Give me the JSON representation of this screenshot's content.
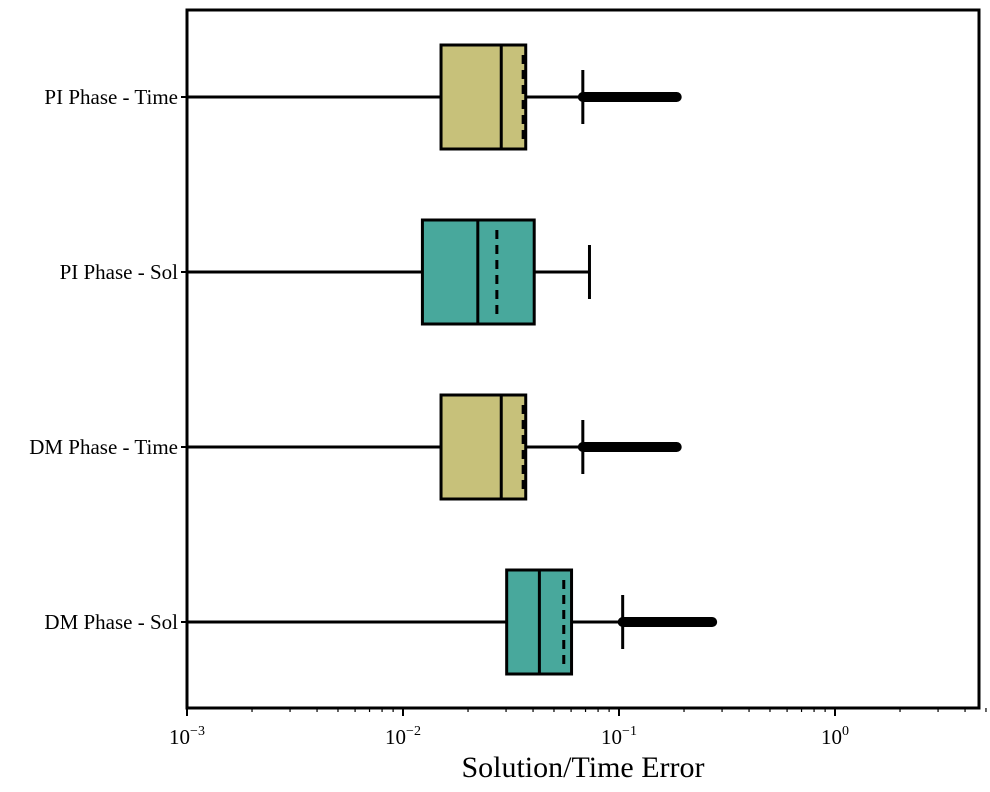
{
  "chart_data": {
    "type": "box",
    "orientation": "horizontal",
    "xlabel": "Solution/Time Error",
    "xscale": "log",
    "xlim": [
      0.001,
      5.2
    ],
    "xticks": [
      {
        "value": 0.001,
        "base": "10",
        "exp": "−3"
      },
      {
        "value": 0.01,
        "base": "10",
        "exp": "−2"
      },
      {
        "value": 0.1,
        "base": "10",
        "exp": "−1"
      },
      {
        "value": 1,
        "base": "10",
        "exp": "0"
      }
    ],
    "grid": false,
    "colors": {
      "time": "#C7C17A",
      "sol": "#48A89C",
      "line": "#000000"
    },
    "categories": [
      "PI Phase - Time",
      "PI Phase - Sol",
      "DM Phase - Time",
      "DM Phase - Sol"
    ],
    "boxes": [
      {
        "label": "PI Phase - Time",
        "color": "#C7C17A",
        "whisker_low": 0.001,
        "q1": 0.015,
        "median": 0.0285,
        "mean": 0.036,
        "q3": 0.037,
        "whisker_high": 0.068,
        "outliers_from": 0.068,
        "outliers_to": 0.185
      },
      {
        "label": "PI Phase - Sol",
        "color": "#48A89C",
        "whisker_low": 0.001,
        "q1": 0.0123,
        "median": 0.0222,
        "mean": 0.0272,
        "q3": 0.0405,
        "whisker_high": 0.073
      },
      {
        "label": "DM Phase - Time",
        "color": "#C7C17A",
        "whisker_low": 0.001,
        "q1": 0.015,
        "median": 0.0285,
        "mean": 0.036,
        "q3": 0.037,
        "whisker_high": 0.068,
        "outliers_from": 0.068,
        "outliers_to": 0.185
      },
      {
        "label": "DM Phase - Sol",
        "color": "#48A89C",
        "whisker_low": 0.001,
        "q1": 0.0302,
        "median": 0.0428,
        "mean": 0.0555,
        "q3": 0.0603,
        "whisker_high": 0.104,
        "outliers_from": 0.104,
        "outliers_to": 0.27
      }
    ]
  }
}
